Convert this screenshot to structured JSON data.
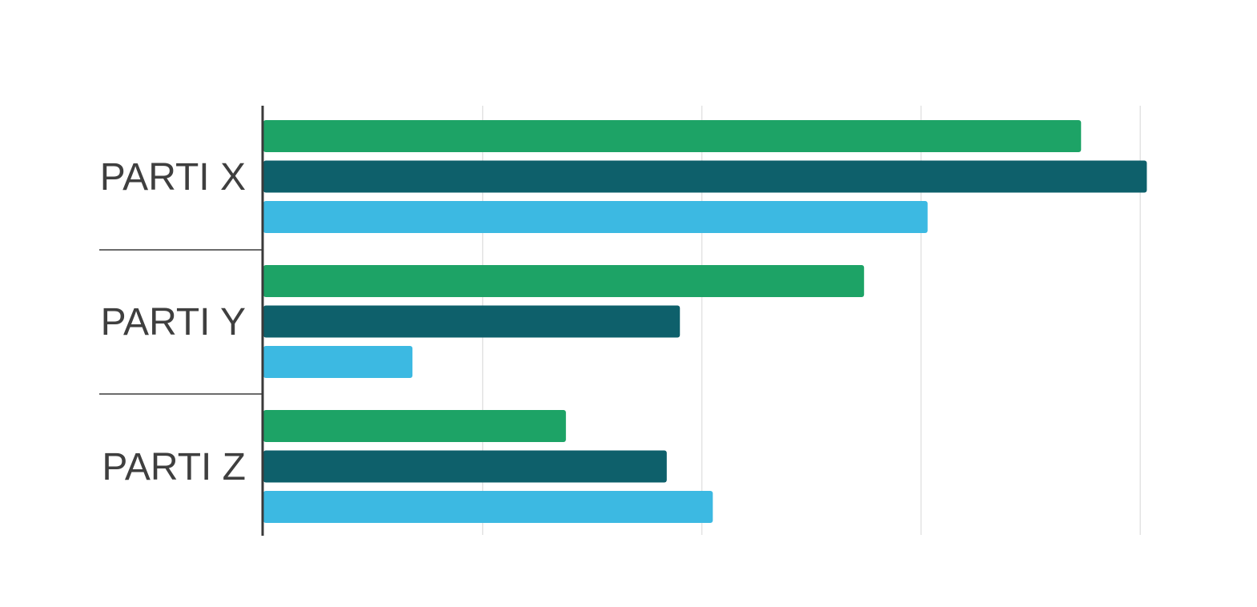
{
  "chart_data": {
    "type": "bar",
    "orientation": "horizontal",
    "categories": [
      "PARTI X",
      "PARTI Y",
      "PARTI Z"
    ],
    "series": [
      {
        "color": "#1da366",
        "values": [
          37.3,
          27.4,
          13.8
        ]
      },
      {
        "color": "#0e606b",
        "values": [
          40.3,
          19.0,
          18.4
        ]
      },
      {
        "color": "#3cb9e2",
        "values": [
          30.3,
          6.8,
          20.5
        ]
      }
    ],
    "xlim": [
      0,
      40
    ],
    "x_gridlines": [
      10,
      20,
      30,
      40
    ],
    "grid": true,
    "tick_labels_visible": false,
    "legend": "none"
  }
}
